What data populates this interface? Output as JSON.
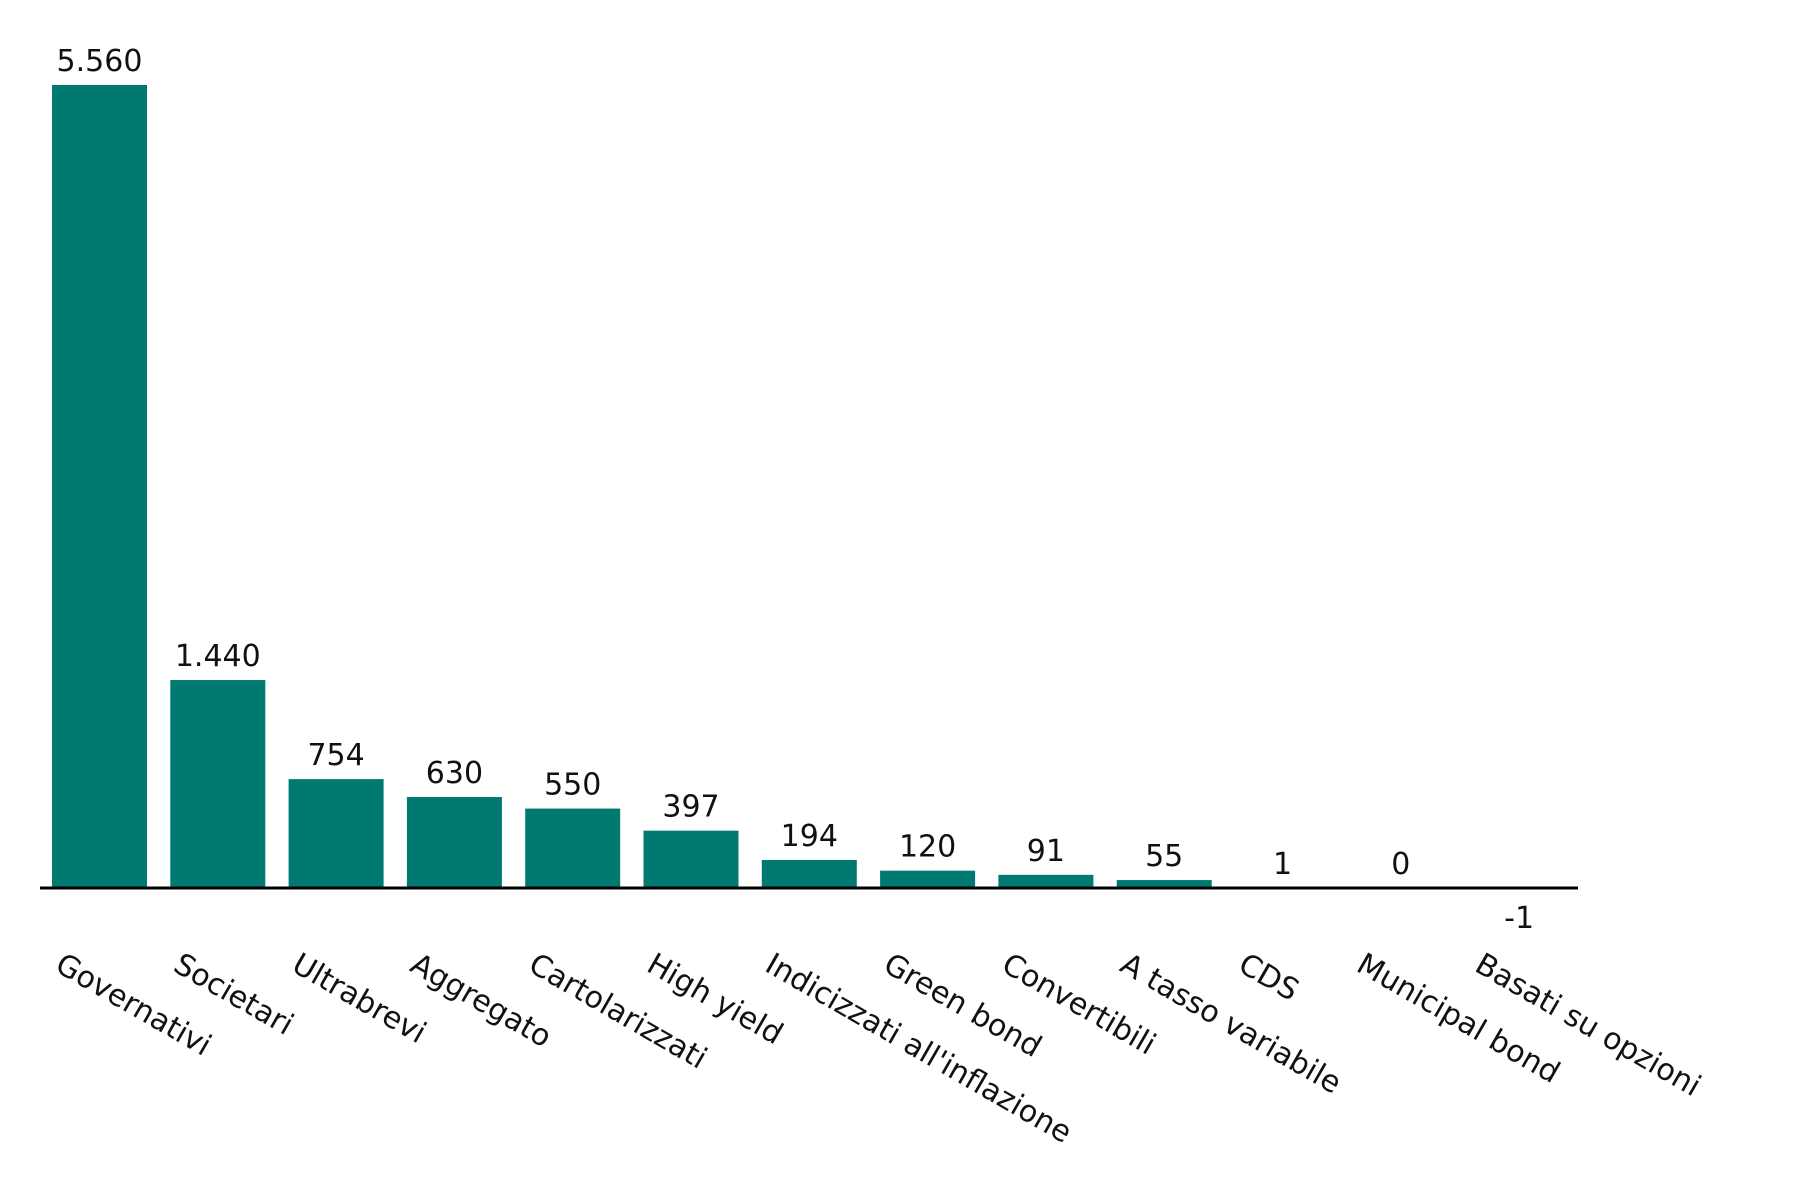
{
  "chart_data": {
    "type": "bar",
    "categories": [
      "Governativi",
      "Societari",
      "Ultrabrevi",
      "Aggregato",
      "Cartolarizzati",
      "High yield",
      "Indicizzati all'inflazione",
      "Green bond",
      "Convertibili",
      "A tasso variabile",
      "CDS",
      "Municipal bond",
      "Basati su opzioni"
    ],
    "values": [
      5560,
      1440,
      754,
      630,
      550,
      397,
      194,
      120,
      91,
      55,
      1,
      0,
      -1
    ],
    "value_labels": [
      "5.560",
      "1.440",
      "754",
      "630",
      "550",
      "397",
      "194",
      "120",
      "91",
      "55",
      "1",
      "0",
      "-1"
    ],
    "color": "#007a70"
  }
}
